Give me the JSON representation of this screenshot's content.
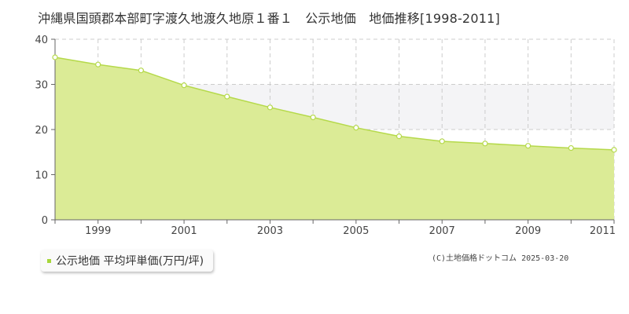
{
  "header": {
    "title": "沖縄県国頭郡本部町字渡久地渡久地原１番１　公示地価　地価推移[1998-2011]"
  },
  "legend": {
    "label": "公示地価 平均坪単価(万円/坪)"
  },
  "credit": "(C)土地価格ドットコム 2025-03-20",
  "colors": {
    "fill": "#dbeb96",
    "line": "#b5d94a",
    "marker_fill": "#ffffff",
    "band": "#f4f4f6",
    "grid": "#cccccc",
    "legend_swatch": "#a6d63a"
  },
  "chart_data": {
    "type": "area",
    "title": "沖縄県国頭郡本部町字渡久地渡久地原１番１　公示地価　地価推移[1998-2011]",
    "xlabel": "",
    "ylabel": "",
    "x": [
      1998,
      1999,
      2000,
      2001,
      2002,
      2003,
      2004,
      2005,
      2006,
      2007,
      2008,
      2009,
      2010,
      2011
    ],
    "xticks": [
      "1999",
      "2001",
      "2003",
      "2005",
      "2007",
      "2009",
      "2011"
    ],
    "yticks": [
      "0",
      "10",
      "20",
      "30",
      "40"
    ],
    "xlim": [
      1998,
      2011
    ],
    "ylim": [
      0,
      40
    ],
    "grid": true,
    "legend_position": "bottom-left",
    "series": [
      {
        "name": "公示地価 平均坪単価(万円/坪)",
        "values": [
          36.0,
          34.4,
          33.1,
          29.8,
          27.3,
          24.9,
          22.7,
          20.4,
          18.5,
          17.4,
          16.9,
          16.4,
          15.9,
          15.5
        ]
      }
    ]
  }
}
